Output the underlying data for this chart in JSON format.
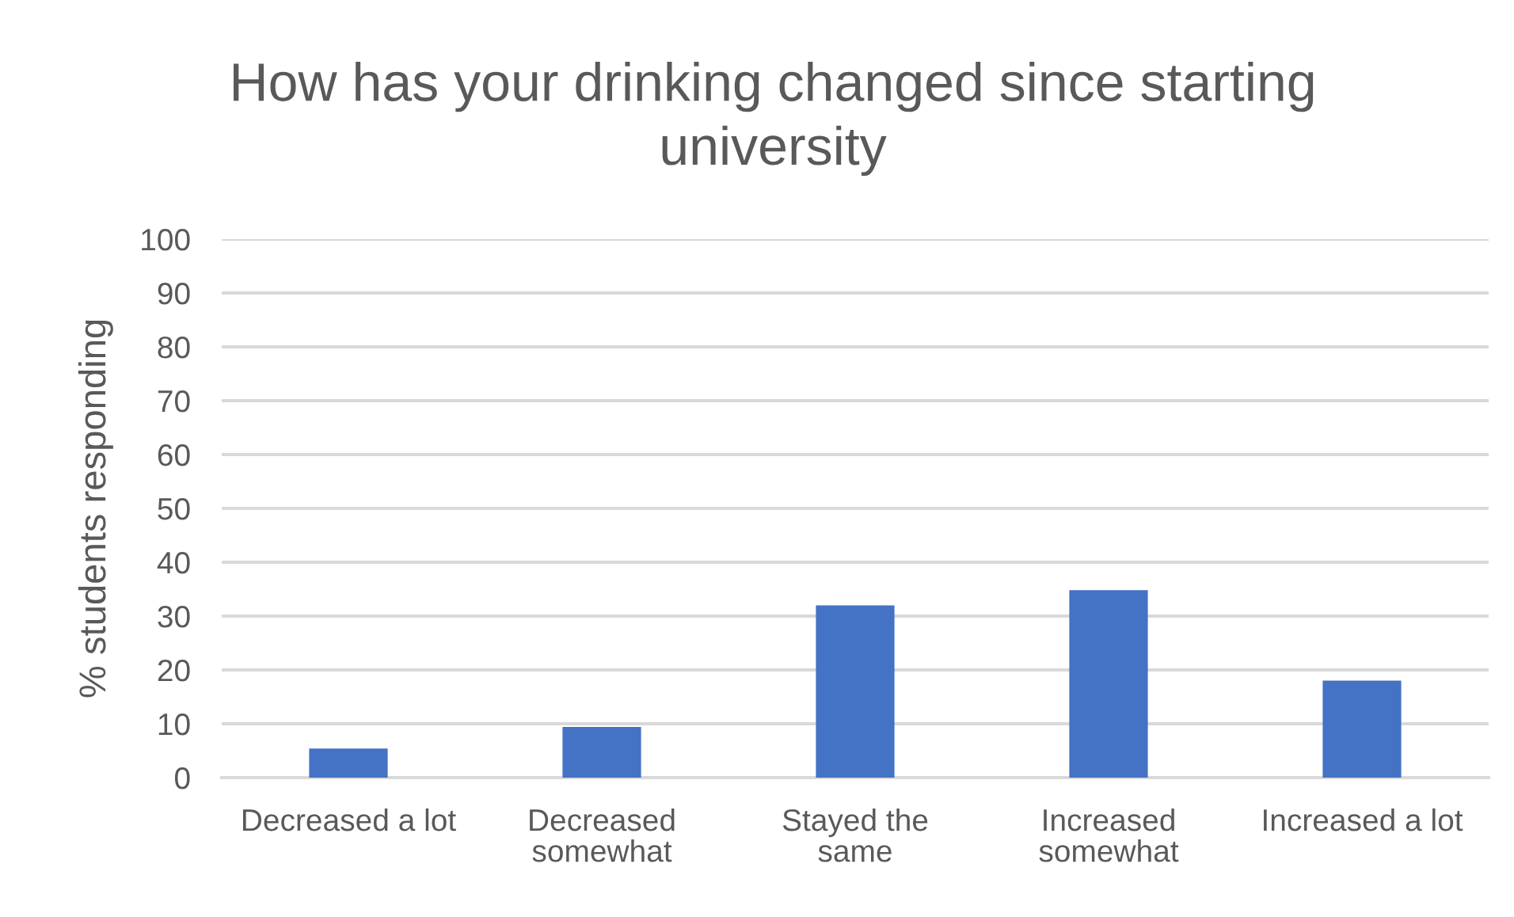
{
  "chart_data": {
    "type": "bar",
    "title": "How has your drinking changed since starting university",
    "ylabel": "% students responding",
    "categories": [
      "Decreased a lot",
      "Decreased somewhat",
      "Stayed the same",
      "Increased somewhat",
      "Increased a lot"
    ],
    "values": [
      5.4,
      9.4,
      32,
      34.8,
      18
    ],
    "color": "#4472c4",
    "ylim": [
      0,
      100
    ],
    "yticks": [
      0,
      10,
      20,
      30,
      40,
      50,
      60,
      70,
      80,
      90,
      100
    ],
    "grid": "y"
  }
}
